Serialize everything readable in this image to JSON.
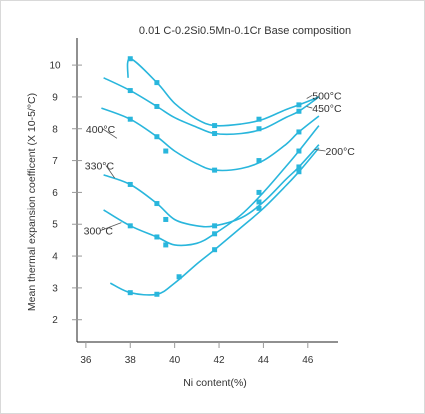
{
  "chart_data": {
    "type": "line",
    "title": "0.01 C-0.2Si0.5Mn-0.1Cr Base composition",
    "xlabel": "Ni content(%)",
    "ylabel": "Mean thermal expansion coefficent (X 10-5/°C)",
    "x_ticks": [
      "36",
      "38",
      "40",
      "42",
      "44",
      "46"
    ],
    "y_ticks": [
      "2",
      "3",
      "4",
      "5",
      "6",
      "7",
      "8",
      "9",
      "10"
    ],
    "xlim": [
      35.6,
      47.0
    ],
    "ylim": [
      1.3,
      10.6
    ],
    "grid": false,
    "line_color": "#29b6dc",
    "axis_color": "#222222",
    "tick_color": "#999999",
    "series": [
      {
        "name": "500°C",
        "x": [
          37.9,
          38.0,
          39.2,
          40.0,
          41.0,
          41.8,
          43.0,
          44.0,
          45.0,
          45.6,
          46.5
        ],
        "y": [
          9.6,
          10.2,
          9.45,
          8.8,
          8.3,
          8.1,
          8.15,
          8.3,
          8.6,
          8.75,
          9.0
        ],
        "markers_x": [
          38.0,
          39.2,
          41.8,
          43.8,
          45.6
        ],
        "markers_y": [
          10.2,
          9.45,
          8.1,
          8.3,
          8.75
        ],
        "label_x": 46.2,
        "label_y": 9.05
      },
      {
        "name": "450°C",
        "x": [
          36.8,
          38.0,
          39.2,
          40.0,
          41.0,
          41.8,
          43.0,
          44.0,
          45.0,
          45.6,
          46.5
        ],
        "y": [
          9.6,
          9.2,
          8.7,
          8.35,
          8.05,
          7.85,
          7.85,
          8.0,
          8.35,
          8.55,
          9.0
        ],
        "markers_x": [
          38.0,
          39.2,
          41.8,
          43.8,
          45.6
        ],
        "markers_y": [
          9.2,
          8.7,
          7.85,
          8.0,
          8.55
        ],
        "label_x": 46.2,
        "label_y": 8.65
      },
      {
        "name": "400°C",
        "x": [
          36.7,
          38.0,
          39.2,
          40.0,
          41.0,
          41.8,
          43.0,
          44.0,
          45.0,
          45.6,
          46.5
        ],
        "y": [
          8.65,
          8.3,
          7.75,
          7.3,
          6.9,
          6.7,
          6.75,
          7.0,
          7.5,
          7.9,
          8.4
        ],
        "markers_x": [
          38.0,
          39.2,
          39.6,
          41.8,
          43.8,
          45.6
        ],
        "markers_y": [
          8.3,
          7.75,
          7.3,
          6.7,
          7.0,
          7.9
        ],
        "label_x": 36.0,
        "label_y": 8.0
      },
      {
        "name": "330°C",
        "x": [
          36.8,
          38.0,
          39.2,
          40.0,
          41.0,
          41.8,
          43.0,
          44.0,
          45.0,
          45.6,
          46.5
        ],
        "y": [
          6.55,
          6.25,
          5.65,
          5.15,
          4.95,
          4.95,
          5.2,
          5.7,
          6.4,
          6.8,
          7.5
        ],
        "markers_x": [
          38.0,
          39.2,
          39.6,
          41.8,
          43.8,
          45.6
        ],
        "markers_y": [
          6.25,
          5.65,
          5.15,
          4.95,
          5.7,
          6.8
        ],
        "label_x": 35.95,
        "label_y": 6.85
      },
      {
        "name": "300°C",
        "x": [
          36.8,
          38.0,
          39.2,
          40.0,
          41.0,
          41.8,
          43.0,
          44.0,
          45.0,
          45.6,
          46.5
        ],
        "y": [
          5.45,
          4.95,
          4.6,
          4.35,
          4.4,
          4.7,
          5.3,
          6.0,
          6.8,
          7.3,
          8.1
        ],
        "markers_x": [
          38.0,
          39.2,
          39.6,
          41.8,
          43.8,
          45.6
        ],
        "markers_y": [
          4.95,
          4.6,
          4.35,
          4.7,
          6.0,
          7.3
        ],
        "label_x": 35.9,
        "label_y": 4.8
      },
      {
        "name": "200°C",
        "x": [
          37.1,
          38.0,
          39.2,
          40.0,
          41.0,
          41.8,
          43.0,
          44.0,
          45.0,
          45.6,
          46.5
        ],
        "y": [
          3.15,
          2.85,
          2.8,
          3.15,
          3.75,
          4.2,
          4.9,
          5.5,
          6.2,
          6.65,
          7.4
        ],
        "markers_x": [
          38.0,
          39.2,
          40.2,
          41.8,
          43.8,
          45.6
        ],
        "markers_y": [
          2.85,
          2.8,
          3.35,
          4.2,
          5.5,
          6.65
        ],
        "label_x": 46.8,
        "label_y": 7.3
      }
    ]
  }
}
